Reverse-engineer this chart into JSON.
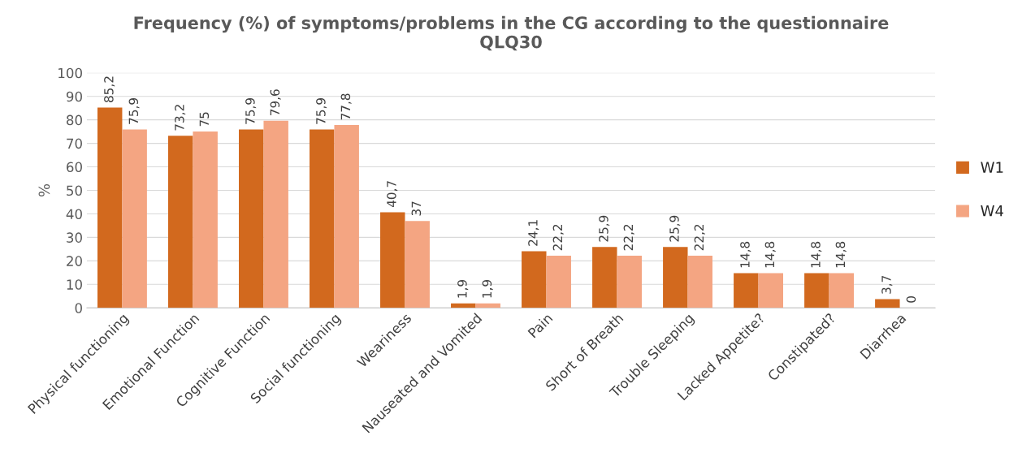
{
  "chart_data": {
    "type": "bar",
    "title": "Frequency (%) of symptoms/problems in the CG according to the questionnaire\nQLQ30",
    "ylabel": "%",
    "categories": [
      "Physical functioning",
      "Emotional Function",
      "Cognitive Function",
      "Social functioning",
      "Weariness",
      "Nauseated and Vomited",
      "Pain",
      "Short of Breath",
      "Trouble Sleeping",
      "Lacked Appetite?",
      "Constipated?",
      "Diarrhea"
    ],
    "series": [
      {
        "name": "W1",
        "color": "#d2691e",
        "values": [
          85.2,
          73.2,
          75.9,
          75.9,
          40.7,
          1.9,
          24.1,
          25.9,
          25.9,
          14.8,
          14.8,
          3.7
        ],
        "value_labels": [
          "85,2",
          "73,2",
          "75,9",
          "75,9",
          "40,7",
          "1,9",
          "24,1",
          "25,9",
          "25,9",
          "14,8",
          "14,8",
          "3,7"
        ]
      },
      {
        "name": "W4",
        "color": "#f4a582",
        "values": [
          75.9,
          75,
          79.6,
          77.8,
          37,
          1.9,
          22.2,
          22.2,
          22.2,
          14.8,
          14.8,
          0
        ],
        "value_labels": [
          "75,9",
          "75",
          "79,6",
          "77,8",
          "37",
          "1,9",
          "22,2",
          "22,2",
          "22,2",
          "14,8",
          "14,8",
          "0"
        ]
      }
    ],
    "ylim": [
      0,
      100
    ],
    "yticks": [
      0,
      10,
      20,
      30,
      40,
      50,
      60,
      70,
      80,
      90,
      100
    ],
    "grid": "y",
    "legend": "right"
  }
}
